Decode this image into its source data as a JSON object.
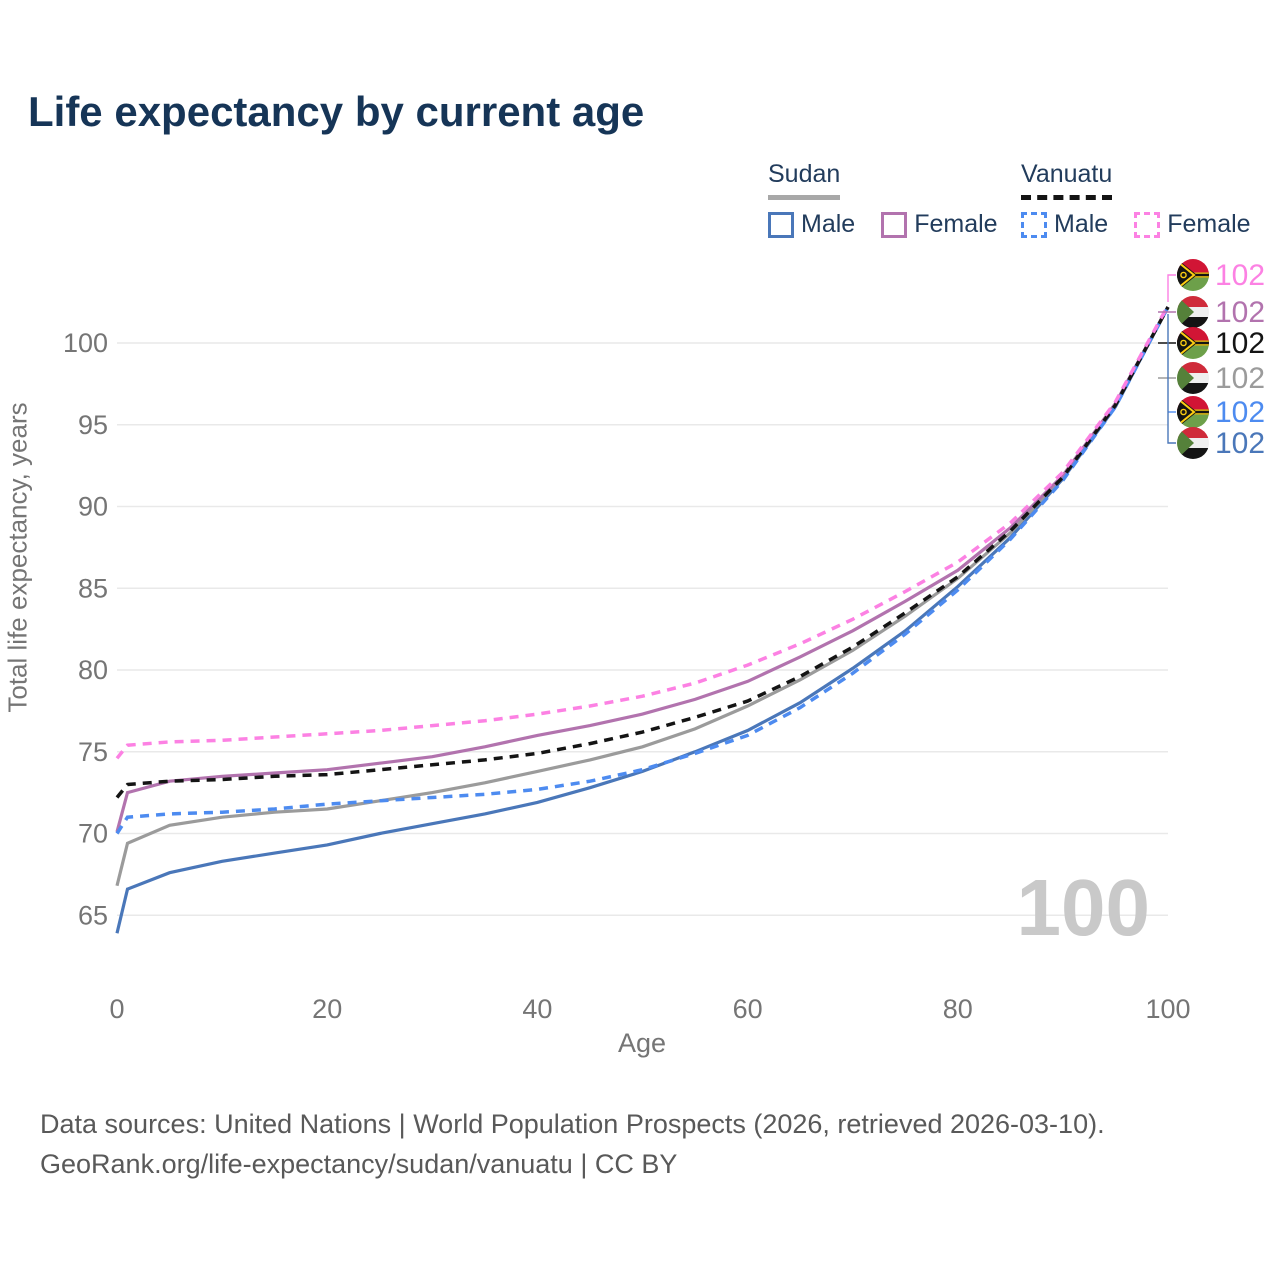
{
  "title": "Life expectancy by current age",
  "legend": {
    "groups": [
      {
        "name": "Sudan",
        "line_style": "solid",
        "underline_color": "#a8a8a8",
        "items": [
          {
            "label": "Male",
            "color": "#4a77b9",
            "dash": false
          },
          {
            "label": "Female",
            "color": "#b273ae",
            "dash": false
          }
        ]
      },
      {
        "name": "Vanuatu",
        "line_style": "dashed",
        "underline_color": "#141414",
        "items": [
          {
            "label": "Male",
            "color": "#4d8bf0",
            "dash": true
          },
          {
            "label": "Female",
            "color": "#fc81e3",
            "dash": true
          }
        ]
      }
    ]
  },
  "chart_data": {
    "type": "line",
    "title": "Life expectancy by current age",
    "xlabel": "Age",
    "ylabel": "Total life expectancy, years",
    "x_ticks": [
      0,
      20,
      40,
      60,
      80,
      100
    ],
    "y_ticks": [
      65,
      70,
      75,
      80,
      85,
      90,
      95,
      100
    ],
    "xlim": [
      0,
      100
    ],
    "ylim": [
      63,
      103.5
    ],
    "grid": "horizontal",
    "legend_position": "top-right",
    "age_counter": "100",
    "x": [
      0,
      1,
      5,
      10,
      15,
      20,
      25,
      30,
      35,
      40,
      45,
      50,
      55,
      60,
      65,
      70,
      75,
      80,
      85,
      90,
      95,
      100
    ],
    "series": [
      {
        "name": "Vanuatu Female",
        "country": "Vanuatu",
        "sex": "Female",
        "color": "#fc81e3",
        "dash": true,
        "flag": "vanuatu",
        "end_label": "102",
        "values": [
          74.6,
          75.4,
          75.6,
          75.7,
          75.9,
          76.1,
          76.3,
          76.6,
          76.9,
          77.3,
          77.8,
          78.4,
          79.2,
          80.3,
          81.6,
          83.1,
          84.8,
          86.6,
          89.0,
          92.1,
          96.4,
          102.3
        ]
      },
      {
        "name": "Sudan Female",
        "country": "Sudan",
        "sex": "Female",
        "color": "#b273ae",
        "dash": false,
        "flag": "sudan",
        "end_label": "102",
        "values": [
          70.1,
          72.5,
          73.2,
          73.5,
          73.7,
          73.9,
          74.3,
          74.7,
          75.3,
          76.0,
          76.6,
          77.3,
          78.2,
          79.3,
          80.8,
          82.4,
          84.2,
          86.1,
          88.7,
          91.9,
          96.3,
          102.2
        ]
      },
      {
        "name": "Vanuatu",
        "country": "Vanuatu",
        "sex": "Both",
        "color": "#141414",
        "dash": true,
        "flag": "vanuatu",
        "end_label": "102",
        "values": [
          72.2,
          73.0,
          73.2,
          73.3,
          73.5,
          73.6,
          73.9,
          74.2,
          74.5,
          74.9,
          75.5,
          76.2,
          77.1,
          78.1,
          79.6,
          81.4,
          83.5,
          85.7,
          88.5,
          91.8,
          96.2,
          102.2
        ]
      },
      {
        "name": "Sudan",
        "country": "Sudan",
        "sex": "Both",
        "color": "#9b9b9b",
        "dash": false,
        "flag": "sudan",
        "end_label": "102",
        "values": [
          66.8,
          69.4,
          70.5,
          71.0,
          71.3,
          71.5,
          72.0,
          72.5,
          73.1,
          73.8,
          74.5,
          75.3,
          76.4,
          77.8,
          79.4,
          81.2,
          83.3,
          85.6,
          88.4,
          91.8,
          96.2,
          102.2
        ]
      },
      {
        "name": "Vanuatu Male",
        "country": "Vanuatu",
        "sex": "Male",
        "color": "#4d8bf0",
        "dash": true,
        "flag": "vanuatu",
        "end_label": "102",
        "values": [
          70.0,
          71.0,
          71.2,
          71.3,
          71.5,
          71.8,
          72.0,
          72.2,
          72.4,
          72.7,
          73.2,
          73.9,
          74.9,
          76.0,
          77.7,
          79.8,
          82.2,
          84.9,
          88.0,
          91.6,
          96.1,
          102.2
        ]
      },
      {
        "name": "Sudan Male",
        "country": "Sudan",
        "sex": "Male",
        "color": "#4a77b9",
        "dash": false,
        "flag": "sudan",
        "end_label": "102",
        "values": [
          63.9,
          66.6,
          67.6,
          68.3,
          68.8,
          69.3,
          70.0,
          70.6,
          71.2,
          71.9,
          72.8,
          73.8,
          75.0,
          76.3,
          78.0,
          80.1,
          82.4,
          85.1,
          88.1,
          91.7,
          96.1,
          102.2
        ]
      }
    ]
  },
  "footer": {
    "line1": "Data sources: United Nations | World Population Prospects (2026, retrieved 2026-03-10).",
    "line2": "GeoRank.org/life-expectancy/sudan/vanuatu | CC BY"
  }
}
